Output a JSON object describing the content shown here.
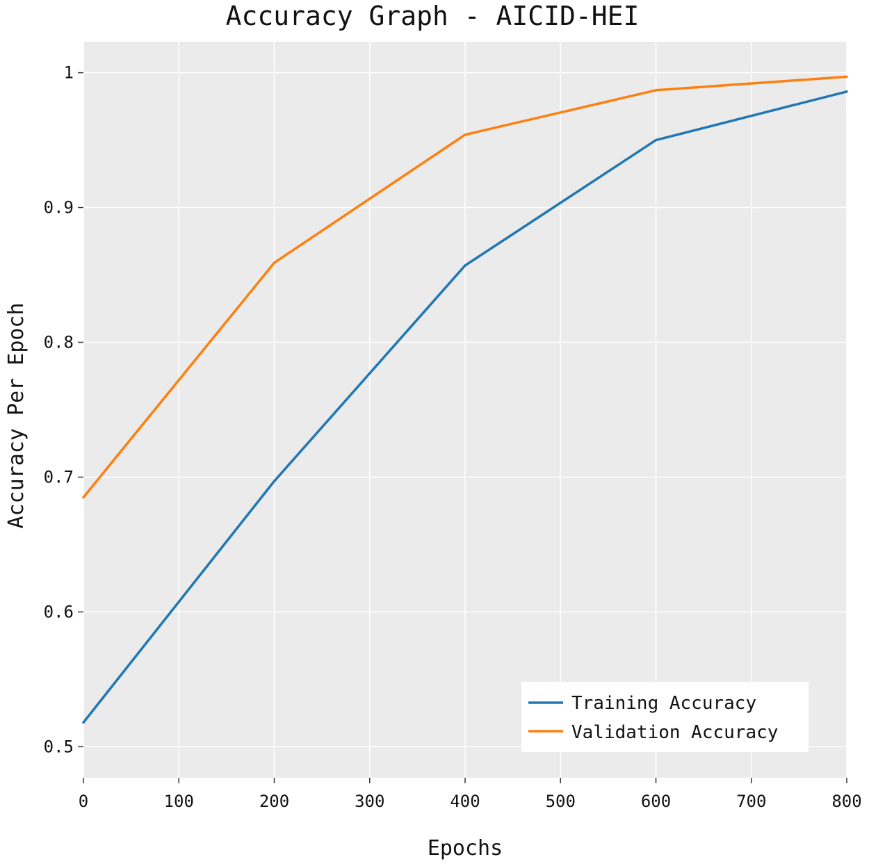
{
  "chart_data": {
    "type": "line",
    "title": "Accuracy Graph - AICID-HEI",
    "xlabel": "Epochs",
    "ylabel": "Accuracy Per Epoch",
    "xlim": [
      0,
      800
    ],
    "ylim": [
      0.477,
      1.023
    ],
    "xticks": [
      0,
      100,
      200,
      300,
      400,
      500,
      600,
      700,
      800
    ],
    "xtick_labels": [
      "0",
      "100",
      "200",
      "300",
      "400",
      "500",
      "600",
      "700",
      "800"
    ],
    "yticks": [
      0.5,
      0.6,
      0.7,
      0.8,
      0.9,
      1.0
    ],
    "ytick_labels": [
      "0.5",
      "0.6",
      "0.7",
      "0.8",
      "0.9",
      "1"
    ],
    "grid": true,
    "legend_position": "bottom-right",
    "x": [
      0,
      200,
      400,
      600,
      800
    ],
    "series": [
      {
        "name": "Training Accuracy",
        "color": "#1f77b4",
        "values": [
          0.518,
          0.697,
          0.857,
          0.95,
          0.986
        ]
      },
      {
        "name": "Validation Accuracy",
        "color": "#ff7f0e",
        "values": [
          0.685,
          0.859,
          0.954,
          0.987,
          0.997
        ]
      }
    ],
    "plot_background": "#ebebeb"
  }
}
